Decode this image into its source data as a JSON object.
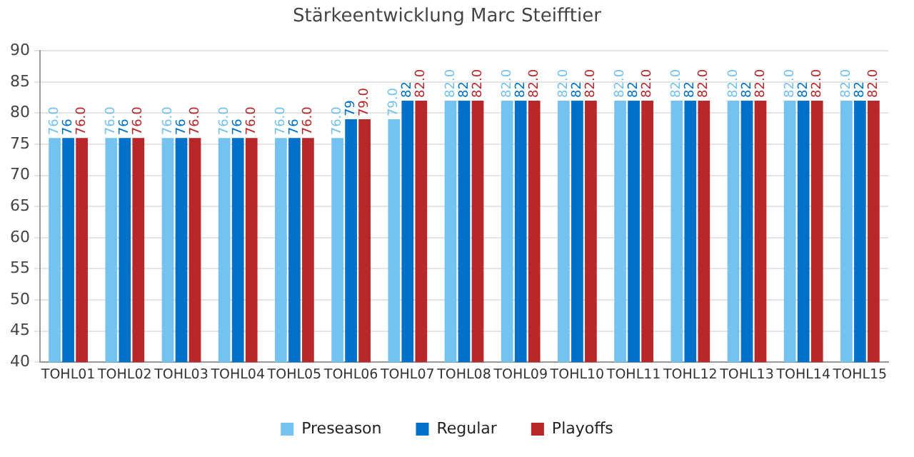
{
  "chart_data": {
    "type": "bar",
    "title": "Stärkeentwicklung Marc Steifftier",
    "categories": [
      "TOHL01",
      "TOHL02",
      "TOHL03",
      "TOHL04",
      "TOHL05",
      "TOHL06",
      "TOHL07",
      "TOHL08",
      "TOHL09",
      "TOHL10",
      "TOHL11",
      "TOHL12",
      "TOHL13",
      "TOHL14",
      "TOHL15"
    ],
    "series": [
      {
        "name": "Preseason",
        "color": "#74c2ef",
        "values": [
          76,
          76,
          76,
          76,
          76,
          76,
          79,
          82,
          82,
          82,
          82,
          82,
          82,
          82,
          82
        ],
        "value_labels": [
          "76.0",
          "76.0",
          "76.0",
          "76.0",
          "76.0",
          "76.0",
          "79.0",
          "82.0",
          "82.0",
          "82.0",
          "82.0",
          "82.0",
          "82.0",
          "82.0",
          "82.0"
        ]
      },
      {
        "name": "Regular",
        "color": "#0070c8",
        "values": [
          76,
          76,
          76,
          76,
          76,
          79,
          82,
          82,
          82,
          82,
          82,
          82,
          82,
          82,
          82
        ],
        "value_labels": [
          "76",
          "76",
          "76",
          "76",
          "76",
          "79",
          "82",
          "82",
          "82",
          "82",
          "82",
          "82",
          "82",
          "82",
          "82"
        ]
      },
      {
        "name": "Playoffs",
        "color": "#b8282a",
        "values": [
          76,
          76,
          76,
          76,
          76,
          79,
          82,
          82,
          82,
          82,
          82,
          82,
          82,
          82,
          82
        ],
        "value_labels": [
          "76.0",
          "76.0",
          "76.0",
          "76.0",
          "76.0",
          "79.0",
          "82.0",
          "82.0",
          "82.0",
          "82.0",
          "82.0",
          "82.0",
          "82.0",
          "82.0",
          "82.0"
        ]
      }
    ],
    "ylim": [
      40,
      90
    ],
    "yticks": [
      40,
      45,
      50,
      55,
      60,
      65,
      70,
      75,
      80,
      85,
      90
    ],
    "grid": "y",
    "legend": "bottom"
  }
}
